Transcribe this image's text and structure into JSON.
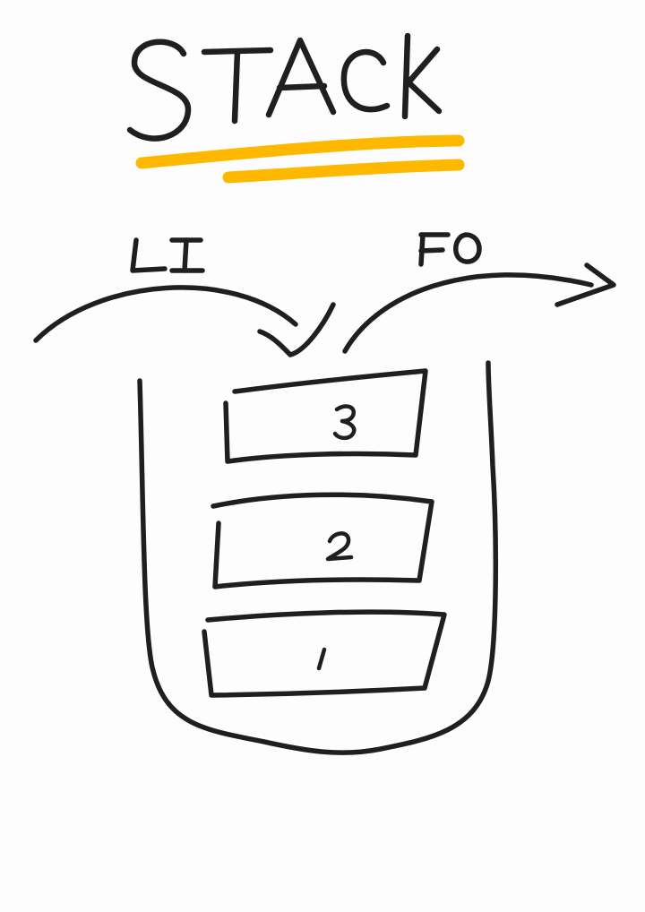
{
  "title": "STACK",
  "labels": {
    "push": "LI",
    "pop": "FO"
  },
  "items": [
    {
      "label": "3"
    },
    {
      "label": "2"
    },
    {
      "label": "1"
    }
  ],
  "colors": {
    "ink": "#1f1f1f",
    "highlight": "#ffb800",
    "background": "#fdfdfd"
  }
}
